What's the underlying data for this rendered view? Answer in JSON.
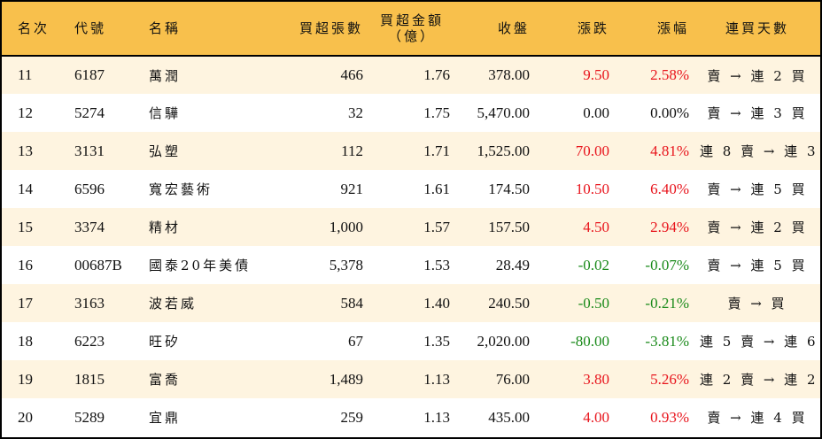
{
  "table": {
    "headers": {
      "rank": "名次",
      "code": "代號",
      "name": "名稱",
      "net_buy_volume": "買超張數",
      "net_buy_amount_line1": "買超金額",
      "net_buy_amount_line2": "（億）",
      "close": "收盤",
      "change": "漲跌",
      "change_pct": "漲幅",
      "streak": "連買天數"
    },
    "colors": {
      "header_bg": "#f8c04c",
      "row_alt_bg": "#fef4e0",
      "up": "#e8141c",
      "down": "#1a8a1a"
    },
    "rows": [
      {
        "rank": "11",
        "code": "6187",
        "name": "萬潤",
        "volume": "466",
        "amount": "1.76",
        "close": "378.00",
        "change": "9.50",
        "pct": "2.58%",
        "dir": "up",
        "streak": "賣 → 連 2 買"
      },
      {
        "rank": "12",
        "code": "5274",
        "name": "信驊",
        "volume": "32",
        "amount": "1.75",
        "close": "5,470.00",
        "change": "0.00",
        "pct": "0.00%",
        "dir": "flat",
        "streak": "賣 → 連 3 買"
      },
      {
        "rank": "13",
        "code": "3131",
        "name": "弘塑",
        "volume": "112",
        "amount": "1.71",
        "close": "1,525.00",
        "change": "70.00",
        "pct": "4.81%",
        "dir": "up",
        "streak": "連 8 賣 → 連 3 買"
      },
      {
        "rank": "14",
        "code": "6596",
        "name": "寬宏藝術",
        "volume": "921",
        "amount": "1.61",
        "close": "174.50",
        "change": "10.50",
        "pct": "6.40%",
        "dir": "up",
        "streak": "賣 → 連 5 買"
      },
      {
        "rank": "15",
        "code": "3374",
        "name": "精材",
        "volume": "1,000",
        "amount": "1.57",
        "close": "157.50",
        "change": "4.50",
        "pct": "2.94%",
        "dir": "up",
        "streak": "賣 → 連 2 買"
      },
      {
        "rank": "16",
        "code": "00687B",
        "name": "國泰20年美債",
        "volume": "5,378",
        "amount": "1.53",
        "close": "28.49",
        "change": "-0.02",
        "pct": "-0.07%",
        "dir": "down",
        "streak": "賣 → 連 5 買"
      },
      {
        "rank": "17",
        "code": "3163",
        "name": "波若威",
        "volume": "584",
        "amount": "1.40",
        "close": "240.50",
        "change": "-0.50",
        "pct": "-0.21%",
        "dir": "down",
        "streak": "賣 → 買"
      },
      {
        "rank": "18",
        "code": "6223",
        "name": "旺矽",
        "volume": "67",
        "amount": "1.35",
        "close": "2,020.00",
        "change": "-80.00",
        "pct": "-3.81%",
        "dir": "down",
        "streak": "連 5 賣 → 連 6 買"
      },
      {
        "rank": "19",
        "code": "1815",
        "name": "富喬",
        "volume": "1,489",
        "amount": "1.13",
        "close": "76.00",
        "change": "3.80",
        "pct": "5.26%",
        "dir": "up",
        "streak": "連 2 賣 → 連 2 買"
      },
      {
        "rank": "20",
        "code": "5289",
        "name": "宜鼎",
        "volume": "259",
        "amount": "1.13",
        "close": "435.00",
        "change": "4.00",
        "pct": "0.93%",
        "dir": "up",
        "streak": "賣 → 連 4 買"
      }
    ]
  }
}
